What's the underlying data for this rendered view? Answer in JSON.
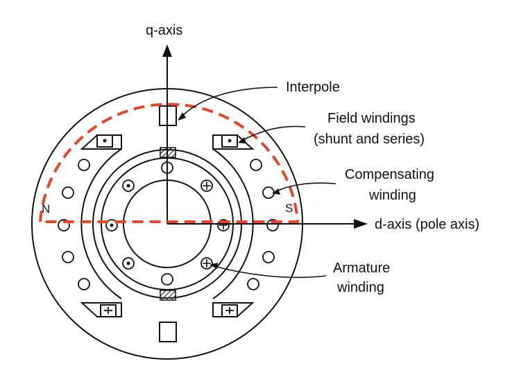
{
  "labels": {
    "q_axis": "q-axis",
    "d_axis": "d-axis (pole axis)",
    "interpole": "Interpole",
    "field_line1": "Field windings",
    "field_line2": "(shunt and series)",
    "comp_line1": "Compensating",
    "comp_line2": "winding",
    "arm_line1": "Armature",
    "arm_line2": "winding",
    "pole_n": "N",
    "pole_s": "S"
  },
  "colors": {
    "ink": "#111111",
    "highlight": "#e8442a"
  },
  "symbols": {
    "current_out": "dot",
    "current_in": "cross"
  }
}
